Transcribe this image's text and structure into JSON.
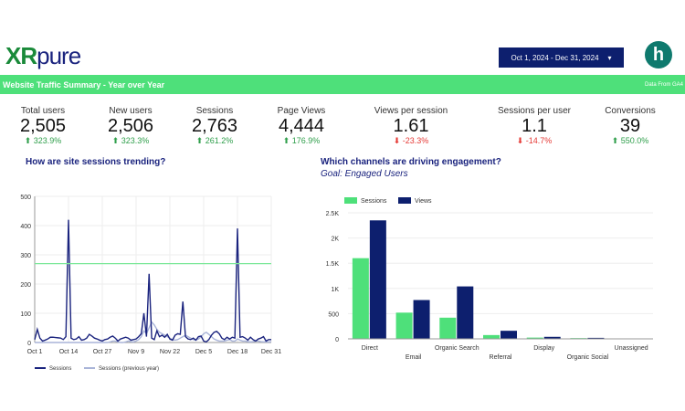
{
  "header": {
    "logo": "XRpure",
    "date_range": "Oct 1, 2024 - Dec 31, 2024",
    "dropdown_icon": "caret-down",
    "partner_logo": "h"
  },
  "banner": {
    "title": "Website Traffic Summary - Year over Year",
    "source": "Data From GA4"
  },
  "kpis": [
    {
      "label": "Total users",
      "value": "2,505",
      "delta": "323.9%",
      "dir": "up"
    },
    {
      "label": "New users",
      "value": "2,506",
      "delta": "323.3%",
      "dir": "up"
    },
    {
      "label": "Sessions",
      "value": "2,763",
      "delta": "261.2%",
      "dir": "up"
    },
    {
      "label": "Page Views",
      "value": "4,444",
      "delta": "176.9%",
      "dir": "up"
    },
    {
      "label": "Views per session",
      "value": "1.61",
      "delta": "-23.3%",
      "dir": "down"
    },
    {
      "label": "Sessions per user",
      "value": "1.1",
      "delta": "-14.7%",
      "dir": "down"
    },
    {
      "label": "Conversions",
      "value": "39",
      "delta": "550.0%",
      "dir": "up"
    }
  ],
  "colors": {
    "green": "#4ee07a",
    "navy": "#0d1f6e",
    "up": "#2e9e4a",
    "down": "#e53935"
  },
  "trend": {
    "heading": "How are site sessions trending?"
  },
  "channels": {
    "heading": "Which channels are driving engagement?",
    "subheading": "Goal: Engaged Users"
  },
  "chart_data": [
    {
      "type": "line",
      "x_start": "Oct 1",
      "x_end": "Dec 31",
      "xticks": [
        "Oct 1",
        "Oct 14",
        "Oct 27",
        "Nov 9",
        "Nov 22",
        "Dec 5",
        "Dec 18",
        "Dec 31"
      ],
      "yticks": [
        "0",
        "100",
        "200",
        "300",
        "400",
        "500"
      ],
      "ylim": [
        0,
        500
      ],
      "reference_line": 270,
      "grid": true,
      "legend": "bottom",
      "series": [
        {
          "name": "Sessions",
          "color": "#1a237e",
          "values": [
            10,
            45,
            15,
            5,
            8,
            12,
            18,
            18,
            17,
            16,
            15,
            10,
            20,
            420,
            15,
            10,
            12,
            20,
            8,
            10,
            15,
            28,
            22,
            15,
            12,
            8,
            5,
            10,
            12,
            18,
            22,
            15,
            5,
            12,
            15,
            18,
            15,
            8,
            10,
            12,
            20,
            30,
            100,
            20,
            235,
            15,
            10,
            40,
            20,
            25,
            18,
            28,
            12,
            8,
            25,
            30,
            28,
            140,
            20,
            12,
            10,
            15,
            8,
            20,
            22,
            5,
            2,
            10,
            25,
            35,
            38,
            30,
            15,
            10,
            18,
            12,
            18,
            15,
            390,
            18,
            20,
            15,
            8,
            18,
            10,
            5,
            12,
            15,
            20,
            5,
            10,
            10
          ]
        },
        {
          "name": "Sessions (previous year)",
          "color": "#a9b4d8",
          "values": [
            0,
            0,
            0,
            0,
            0,
            0,
            0,
            0,
            0,
            0,
            0,
            0,
            0,
            0,
            0,
            0,
            0,
            0,
            0,
            0,
            0,
            0,
            0,
            0,
            0,
            0,
            0,
            0,
            0,
            2,
            5,
            5,
            2,
            0,
            0,
            2,
            5,
            3,
            2,
            5,
            10,
            20,
            40,
            30,
            50,
            70,
            60,
            45,
            35,
            30,
            25,
            20,
            15,
            10,
            8,
            10,
            15,
            20,
            25,
            20,
            15,
            10,
            8,
            12,
            20,
            30,
            35,
            28,
            20,
            12,
            8,
            5,
            5,
            5,
            8,
            10,
            5,
            5,
            12,
            8,
            5,
            5,
            3,
            2,
            3,
            5,
            5,
            3,
            2,
            2,
            2,
            2
          ]
        }
      ]
    },
    {
      "type": "bar",
      "categories": [
        "Direct",
        "Email",
        "Organic Search",
        "Referral",
        "Display",
        "Organic Social",
        "Unassigned"
      ],
      "yticks": [
        "0",
        "500",
        "1K",
        "1.5K",
        "2K",
        "2.5K"
      ],
      "ylim": [
        0,
        2500
      ],
      "grid": true,
      "legend": "top-left",
      "series": [
        {
          "name": "Sessions",
          "color": "#4ee07a",
          "values": [
            1600,
            520,
            420,
            75,
            25,
            15,
            5
          ]
        },
        {
          "name": "Views",
          "color": "#0d1f6e",
          "values": [
            2350,
            770,
            1040,
            160,
            40,
            20,
            8
          ]
        }
      ]
    }
  ]
}
